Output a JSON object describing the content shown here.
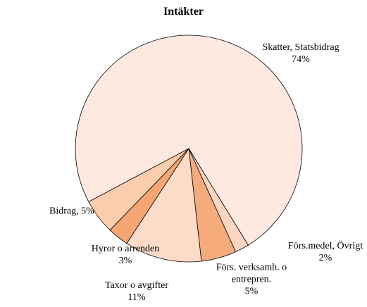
{
  "chart_data": {
    "type": "pie",
    "title": "Intäkter",
    "categories": [
      "Skatter, Statsbidrag",
      "Förs.medel, Övrigt",
      "Förs. verksamh. o entrepren.",
      "Taxor o avgifter",
      "Hyror o arrenden",
      "Bidrag,"
    ],
    "values": [
      74,
      2,
      5,
      11,
      3,
      5
    ],
    "value_labels": [
      "74%",
      "2%",
      "5%",
      "11%",
      "3%",
      "5%"
    ],
    "colors": [
      "#fde9e0",
      "#fcd6c2",
      "#f6ab7c",
      "#fcdcc8",
      "#f6a673",
      "#fbcdad"
    ]
  }
}
